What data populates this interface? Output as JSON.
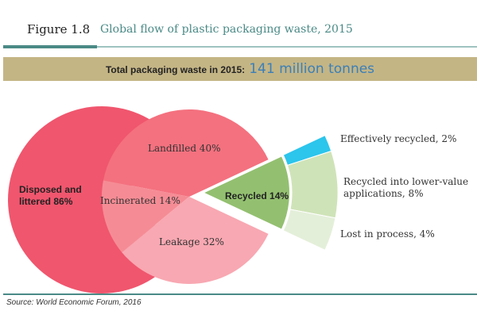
{
  "figure_label": "Figure 1.8",
  "chart_data": {
    "type": "pie",
    "title": "Global flow of plastic packaging waste, 2015",
    "banner": {
      "label": "Total packaging waste in 2015:",
      "value_text": "141 million tonnes"
    },
    "labels": [
      "Disposed and littered 86%",
      "Recycled 14%"
    ],
    "values": [
      86,
      14
    ],
    "colors": [
      "#f0566e",
      "#93c070"
    ],
    "subgroups": [
      {
        "labels": [
          "Landfilled 40%",
          "Incinerated 14%",
          "Leakage 32%"
        ],
        "values": [
          40,
          14,
          32
        ],
        "colors": [
          "#f4717f",
          "#f58c95",
          "#f8a8b2"
        ]
      },
      {
        "labels": [
          "Effectively recycled, 2%",
          "Recycled into lower-value applications, 8%",
          "Lost in process, 4%"
        ],
        "values": [
          2,
          8,
          4
        ],
        "colors": [
          "#2cc5ec",
          "#cfe3b8",
          "#e4efd9"
        ]
      }
    ],
    "source": "Source:   World Economic Forum, 2016"
  }
}
